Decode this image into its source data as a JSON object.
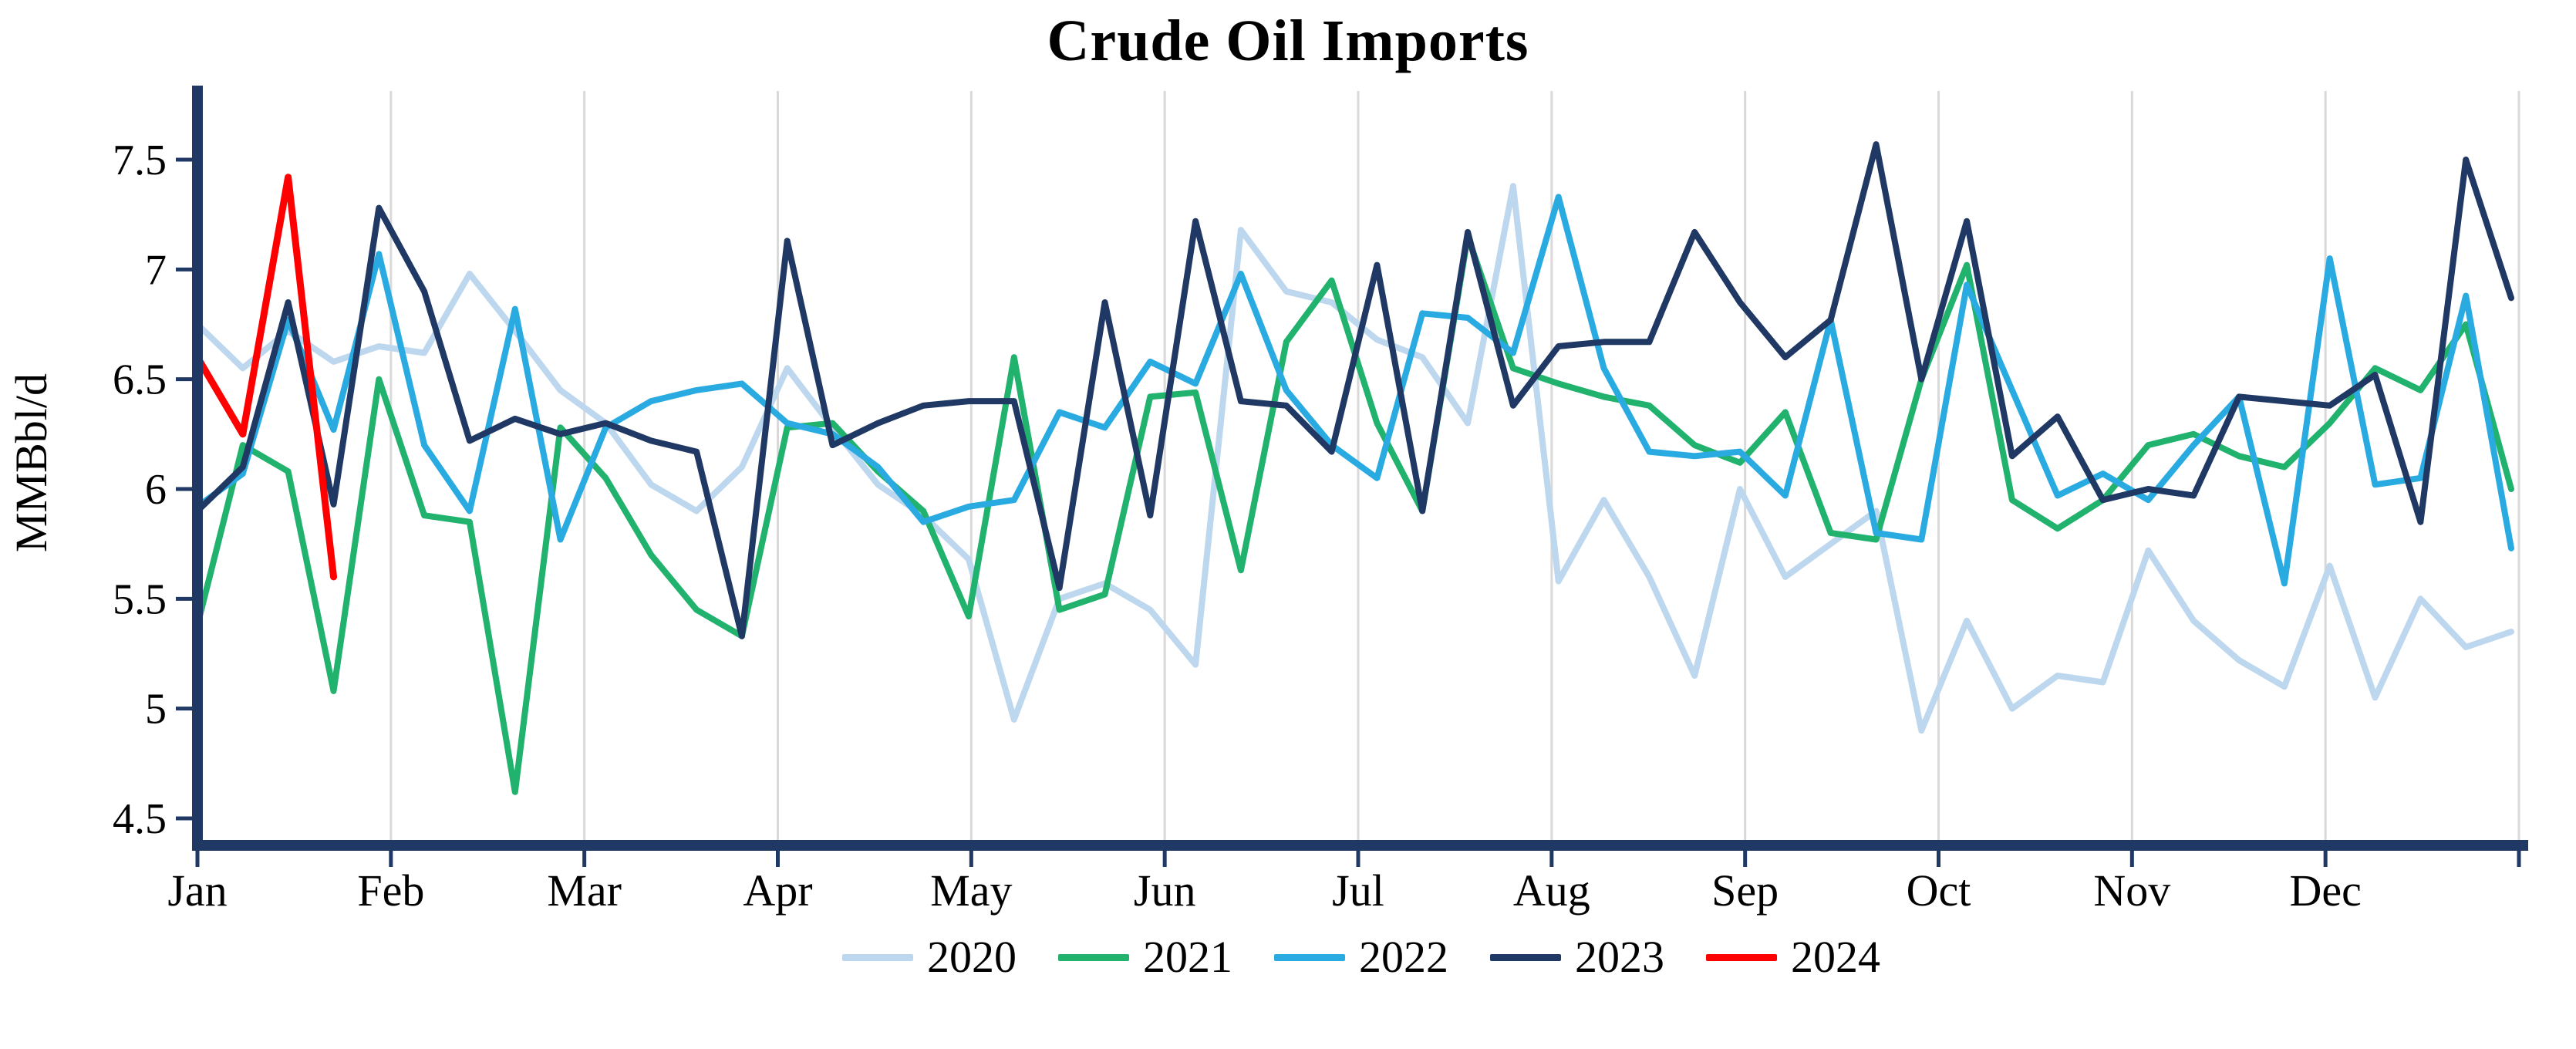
{
  "title": "Crude Oil Imports",
  "chart_data": {
    "type": "line",
    "title": "Crude Oil Imports",
    "xlabel": "",
    "ylabel": "MMBbl/d",
    "x_unit": "weekly observations, January through December",
    "x_tick_labels": [
      "Jan",
      "Feb",
      "Mar",
      "Apr",
      "May",
      "Jun",
      "Jul",
      "Aug",
      "Sep",
      "Oct",
      "Nov",
      "Dec"
    ],
    "y_ticks": [
      4.5,
      5,
      5.5,
      6,
      6.5,
      7,
      7.5
    ],
    "ylim": [
      4.38,
      7.82
    ],
    "grid": "vertical gridlines at each month boundary",
    "legend_position": "bottom-center",
    "axis_color": "#1F3864",
    "grid_color": "#D9D9D9",
    "series": [
      {
        "name": "2020",
        "color": "#BDD7EE",
        "values": [
          6.75,
          6.55,
          6.72,
          6.58,
          6.65,
          6.62,
          6.98,
          6.72,
          6.45,
          6.3,
          6.02,
          5.9,
          6.1,
          6.55,
          6.28,
          6.02,
          5.88,
          5.68,
          4.95,
          5.5,
          5.57,
          5.45,
          5.2,
          7.18,
          6.9,
          6.85,
          6.68,
          6.6,
          6.3,
          7.38,
          5.58,
          5.95,
          5.6,
          5.15,
          6.0,
          5.6,
          5.75,
          5.9,
          4.9,
          5.4,
          5.0,
          5.15,
          5.12,
          5.72,
          5.4,
          5.22,
          5.1,
          5.65,
          5.05,
          5.5,
          5.28,
          5.35
        ]
      },
      {
        "name": "2021",
        "color": "#21B26E",
        "values": [
          5.38,
          6.2,
          6.08,
          5.08,
          6.5,
          5.88,
          5.85,
          4.62,
          6.28,
          6.05,
          5.7,
          5.45,
          5.33,
          6.28,
          6.3,
          6.08,
          5.9,
          5.42,
          6.6,
          5.45,
          5.52,
          6.42,
          6.44,
          5.63,
          6.67,
          6.95,
          6.3,
          5.9,
          7.15,
          6.55,
          6.48,
          6.42,
          6.38,
          6.2,
          6.12,
          6.35,
          5.8,
          5.77,
          6.5,
          7.02,
          5.95,
          5.82,
          5.95,
          6.2,
          6.25,
          6.15,
          6.1,
          6.3,
          6.55,
          6.45,
          6.75,
          6.0
        ]
      },
      {
        "name": "2022",
        "color": "#29ABE2",
        "values": [
          5.92,
          6.07,
          6.77,
          6.27,
          7.07,
          6.2,
          5.9,
          6.82,
          5.77,
          6.28,
          6.4,
          6.45,
          6.48,
          6.3,
          6.25,
          6.1,
          5.85,
          5.92,
          5.95,
          6.35,
          6.28,
          6.58,
          6.48,
          6.98,
          6.45,
          6.2,
          6.05,
          6.8,
          6.78,
          6.62,
          7.33,
          6.55,
          6.17,
          6.15,
          6.17,
          5.97,
          6.77,
          5.8,
          5.77,
          6.93,
          6.45,
          5.97,
          6.07,
          5.95,
          6.2,
          6.42,
          5.57,
          7.05,
          6.02,
          6.05,
          6.88,
          5.73
        ]
      },
      {
        "name": "2023",
        "color": "#1F3864",
        "values": [
          5.9,
          6.1,
          6.85,
          5.93,
          7.28,
          6.9,
          6.22,
          6.32,
          6.25,
          6.3,
          6.22,
          6.17,
          5.33,
          7.13,
          6.2,
          6.3,
          6.38,
          6.4,
          6.4,
          5.55,
          6.85,
          5.88,
          7.22,
          6.4,
          6.38,
          6.17,
          7.02,
          5.9,
          7.17,
          6.38,
          6.65,
          6.67,
          6.67,
          7.17,
          6.85,
          6.6,
          6.77,
          7.57,
          6.5,
          7.22,
          6.15,
          6.33,
          5.95,
          6.0,
          5.97,
          6.42,
          6.4,
          6.38,
          6.52,
          5.85,
          7.5,
          6.87
        ]
      },
      {
        "name": "2024",
        "color": "#FF0000",
        "values": [
          6.6,
          6.25,
          7.42,
          5.6
        ]
      }
    ]
  }
}
